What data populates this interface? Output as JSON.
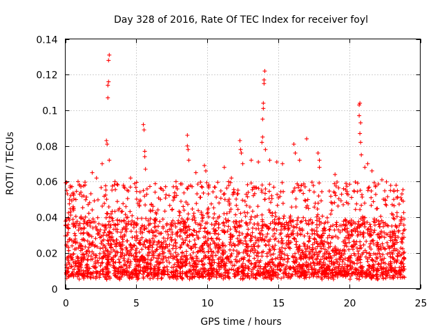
{
  "chart_data": {
    "type": "scatter",
    "title": "Day 328 of 2016, Rate Of TEC Index for receiver foyl",
    "xlabel": "GPS time / hours",
    "ylabel": "ROTI / TECUs",
    "xlim": [
      0,
      25
    ],
    "ylim": [
      0,
      0.14
    ],
    "xticks": [
      0,
      5,
      10,
      15,
      20,
      25
    ],
    "xtick_labels": [
      "0",
      "5",
      "10",
      "15",
      "20",
      "25"
    ],
    "yticks": [
      0,
      0.02,
      0.04,
      0.06,
      0.08,
      0.1,
      0.12,
      0.14
    ],
    "ytick_labels": [
      "0",
      "0.02",
      "0.04",
      "0.06",
      "0.08",
      "0.1",
      "0.12",
      "0.14"
    ],
    "grid": true,
    "marker": "+",
    "color": "#ff0000",
    "data_range_hours": [
      0,
      23.9
    ],
    "baseline_band": [
      0.005,
      0.04
    ],
    "series": [
      {
        "name": "ROTI",
        "points": [
          [
            0.1,
            0.055
          ],
          [
            0.3,
            0.05
          ],
          [
            0.6,
            0.045
          ],
          [
            0.9,
            0.06
          ],
          [
            1.0,
            0.058
          ],
          [
            1.3,
            0.052
          ],
          [
            1.9,
            0.065
          ],
          [
            2.2,
            0.062
          ],
          [
            2.6,
            0.07
          ],
          [
            2.9,
            0.083
          ],
          [
            2.95,
            0.081
          ],
          [
            3.0,
            0.107
          ],
          [
            3.0,
            0.114
          ],
          [
            3.05,
            0.116
          ],
          [
            3.05,
            0.128
          ],
          [
            3.1,
            0.131
          ],
          [
            3.1,
            0.072
          ],
          [
            3.5,
            0.06
          ],
          [
            4.1,
            0.058
          ],
          [
            4.6,
            0.062
          ],
          [
            5.5,
            0.092
          ],
          [
            5.55,
            0.089
          ],
          [
            5.6,
            0.077
          ],
          [
            5.6,
            0.074
          ],
          [
            5.65,
            0.067
          ],
          [
            5.5,
            0.055
          ],
          [
            6.7,
            0.05
          ],
          [
            7.8,
            0.06
          ],
          [
            8.6,
            0.086
          ],
          [
            8.6,
            0.08
          ],
          [
            8.65,
            0.078
          ],
          [
            8.7,
            0.072
          ],
          [
            9.2,
            0.065
          ],
          [
            9.8,
            0.069
          ],
          [
            9.9,
            0.066
          ],
          [
            11.2,
            0.068
          ],
          [
            11.7,
            0.062
          ],
          [
            12.3,
            0.083
          ],
          [
            12.35,
            0.078
          ],
          [
            12.4,
            0.076
          ],
          [
            12.5,
            0.07
          ],
          [
            13.1,
            0.072
          ],
          [
            13.6,
            0.071
          ],
          [
            13.85,
            0.082
          ],
          [
            13.9,
            0.085
          ],
          [
            13.9,
            0.095
          ],
          [
            13.95,
            0.101
          ],
          [
            13.95,
            0.104
          ],
          [
            14.0,
            0.115
          ],
          [
            14.0,
            0.117
          ],
          [
            14.05,
            0.122
          ],
          [
            14.1,
            0.078
          ],
          [
            14.4,
            0.072
          ],
          [
            14.9,
            0.071
          ],
          [
            15.3,
            0.07
          ],
          [
            16.1,
            0.081
          ],
          [
            16.2,
            0.076
          ],
          [
            16.5,
            0.072
          ],
          [
            17.0,
            0.084
          ],
          [
            17.8,
            0.076
          ],
          [
            17.9,
            0.072
          ],
          [
            17.9,
            0.068
          ],
          [
            19.0,
            0.064
          ],
          [
            19.6,
            0.056
          ],
          [
            20.7,
            0.103
          ],
          [
            20.75,
            0.104
          ],
          [
            20.7,
            0.097
          ],
          [
            20.8,
            0.093
          ],
          [
            20.75,
            0.087
          ],
          [
            20.8,
            0.082
          ],
          [
            20.85,
            0.075
          ],
          [
            21.1,
            0.068
          ],
          [
            21.3,
            0.07
          ],
          [
            21.6,
            0.066
          ],
          [
            22.3,
            0.061
          ],
          [
            22.9,
            0.055
          ],
          [
            23.3,
            0.058
          ],
          [
            23.8,
            0.049
          ]
        ]
      }
    ]
  }
}
